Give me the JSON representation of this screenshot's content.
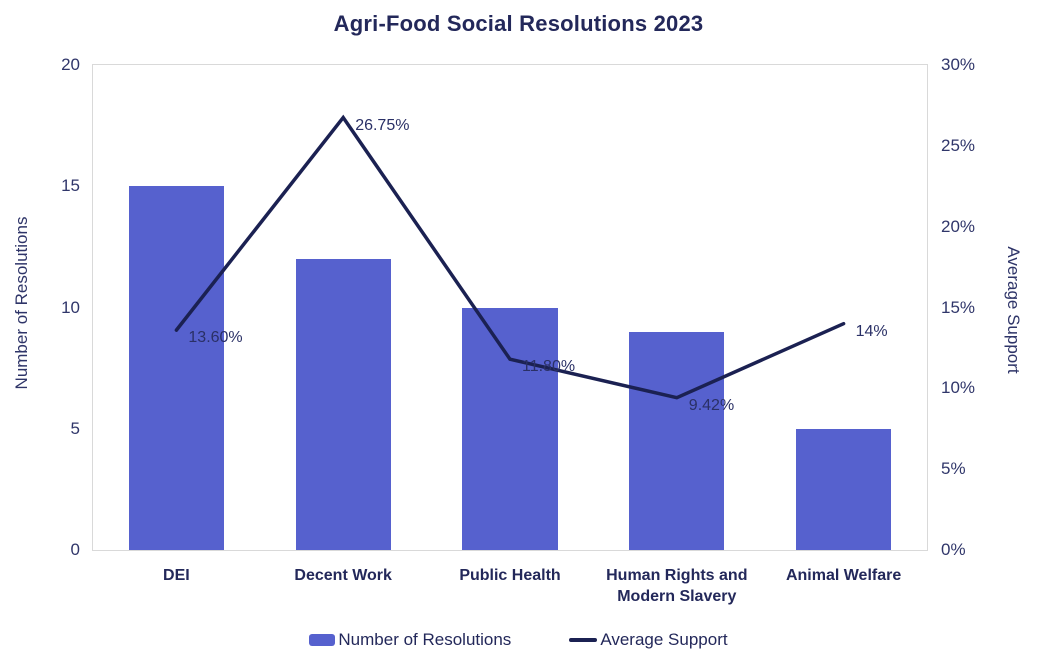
{
  "chart_data": {
    "type": "combo",
    "title": "Agri-Food Social Resolutions 2023",
    "categories": [
      "DEI",
      "Decent Work",
      "Public Health",
      "Human Rights and Modern Slavery",
      "Animal Welfare"
    ],
    "series": [
      {
        "name": "Number of Resolutions",
        "type": "bar",
        "axis": "left",
        "values": [
          15,
          12,
          10,
          9,
          5
        ]
      },
      {
        "name": "Average Support",
        "type": "line",
        "axis": "right",
        "values": [
          13.6,
          26.75,
          11.8,
          9.42,
          14
        ],
        "labels": [
          "13.60%",
          "26.75%",
          "11.80%",
          "9.42%",
          "14%"
        ]
      }
    ],
    "left_axis": {
      "label": "Number of Resolutions",
      "min": 0,
      "max": 20,
      "tick_step": 5,
      "ticks": [
        "0",
        "5",
        "10",
        "15",
        "20"
      ]
    },
    "right_axis": {
      "label": "Average Support",
      "min": 0,
      "max": 30,
      "tick_step": 5,
      "ticks": [
        "0%",
        "5%",
        "10%",
        "15%",
        "20%",
        "25%",
        "30%"
      ]
    },
    "grid": "off",
    "legend_position": "bottom",
    "legend": [
      {
        "label": "Number of Resolutions",
        "swatch": "bar"
      },
      {
        "label": "Average Support",
        "swatch": "line"
      }
    ],
    "colors": {
      "bar": "#5661CE",
      "line": "#1B2152",
      "title_text": "#23285A",
      "tick_text": "#30366A",
      "plot_border": "#D9D9D9",
      "background": "#FFFFFF"
    }
  }
}
